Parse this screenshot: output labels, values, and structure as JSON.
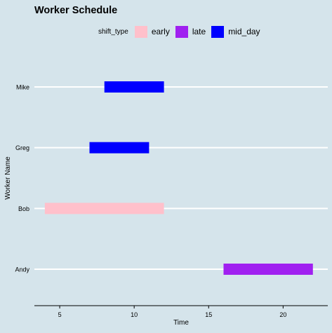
{
  "chart_data": {
    "type": "bar",
    "orientation": "horizontal-range",
    "title": "Worker Schedule",
    "xlabel": "Time",
    "ylabel": "Worker Name",
    "xlim": [
      3.3,
      23
    ],
    "xticks": [
      5,
      10,
      15,
      20
    ],
    "categories": [
      "Andy",
      "Bob",
      "Greg",
      "Mike"
    ],
    "legend": {
      "title": "shift_type",
      "position": "top",
      "entries": [
        {
          "label": "early",
          "color": "#ffc0cb"
        },
        {
          "label": "late",
          "color": "#a020f0"
        },
        {
          "label": "mid_day",
          "color": "#0000ff"
        }
      ]
    },
    "segments": [
      {
        "worker": "Mike",
        "start": 8,
        "end": 12,
        "shift_type": "mid_day"
      },
      {
        "worker": "Greg",
        "start": 7,
        "end": 11,
        "shift_type": "mid_day"
      },
      {
        "worker": "Bob",
        "start": 4,
        "end": 12,
        "shift_type": "early"
      },
      {
        "worker": "Andy",
        "start": 16,
        "end": 22,
        "shift_type": "late"
      }
    ],
    "grid": "horizontal-major",
    "background": "#d5e4eb",
    "gridline_color": "#ffffff"
  }
}
